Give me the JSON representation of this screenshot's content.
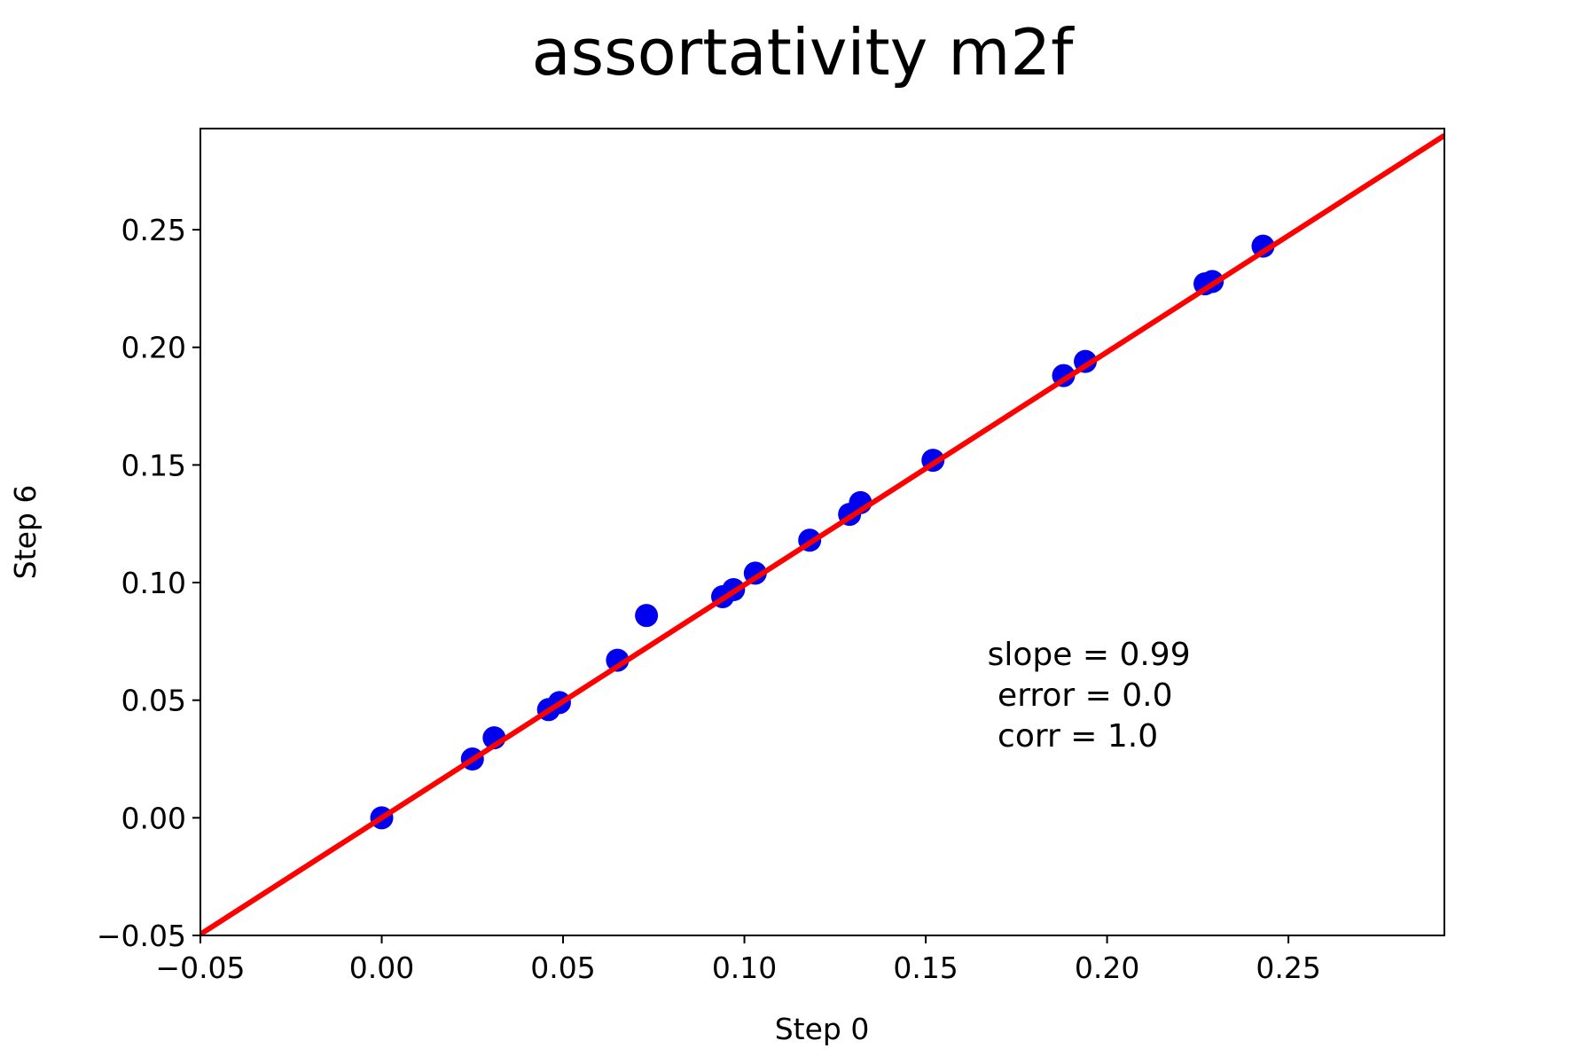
{
  "chart_data": {
    "type": "scatter",
    "title": "assortativity m2f",
    "xlabel": "Step 0",
    "ylabel": "Step 6",
    "xlim": [
      -0.05,
      0.293
    ],
    "ylim": [
      -0.05,
      0.293
    ],
    "grid": false,
    "xticks": [
      -0.05,
      0.0,
      0.05,
      0.1,
      0.15,
      0.2,
      0.25
    ],
    "yticks": [
      -0.05,
      0.0,
      0.05,
      0.1,
      0.15,
      0.2,
      0.25
    ],
    "xtick_labels": [
      "−0.05",
      "0.00",
      "0.05",
      "0.10",
      "0.15",
      "0.20",
      "0.25"
    ],
    "ytick_labels": [
      "−0.05",
      "0.00",
      "0.05",
      "0.10",
      "0.15",
      "0.20",
      "0.25"
    ],
    "series": [
      {
        "color": "#0000ee",
        "points": [
          [
            0.0,
            0.0
          ],
          [
            0.025,
            0.025
          ],
          [
            0.031,
            0.034
          ],
          [
            0.046,
            0.046
          ],
          [
            0.049,
            0.049
          ],
          [
            0.065,
            0.067
          ],
          [
            0.073,
            0.086
          ],
          [
            0.094,
            0.094
          ],
          [
            0.097,
            0.097
          ],
          [
            0.103,
            0.104
          ],
          [
            0.118,
            0.118
          ],
          [
            0.129,
            0.129
          ],
          [
            0.132,
            0.134
          ],
          [
            0.152,
            0.152
          ],
          [
            0.188,
            0.188
          ],
          [
            0.194,
            0.194
          ],
          [
            0.227,
            0.227
          ],
          [
            0.229,
            0.228
          ],
          [
            0.243,
            0.243
          ]
        ]
      }
    ],
    "fit_line": {
      "color": "#ff0000",
      "slope": 0.99,
      "intercept": 0.0
    },
    "annotation": {
      "lines": [
        "slope = 0.99",
        " error = 0.0",
        " corr = 1.0"
      ],
      "x": 0.167,
      "y": 0.065
    }
  }
}
